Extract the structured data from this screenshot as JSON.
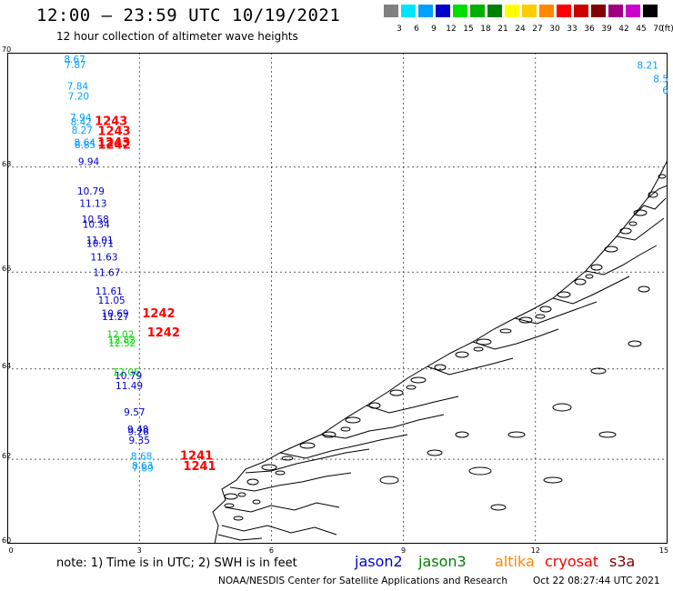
{
  "header": {
    "title": "12:00 – 23:59 UTC 10/19/2021",
    "subtitle": "12 hour collection of altimeter wave heights"
  },
  "colorbar": {
    "unit": "(ft)",
    "bins": [
      {
        "label": "3",
        "color": "#808080"
      },
      {
        "label": "6",
        "color": "#00e5ff"
      },
      {
        "label": "9",
        "color": "#00a0ff"
      },
      {
        "label": "12",
        "color": "#0000cc"
      },
      {
        "label": "15",
        "color": "#00dd00"
      },
      {
        "label": "18",
        "color": "#00b000"
      },
      {
        "label": "21",
        "color": "#008000"
      },
      {
        "label": "24",
        "color": "#ffff00"
      },
      {
        "label": "27",
        "color": "#ffcc00"
      },
      {
        "label": "30",
        "color": "#ff8800"
      },
      {
        "label": "33",
        "color": "#ff0000"
      },
      {
        "label": "36",
        "color": "#cc0000"
      },
      {
        "label": "39",
        "color": "#800000"
      },
      {
        "label": "42",
        "color": "#a00080"
      },
      {
        "label": "45",
        "color": "#cc00cc"
      },
      {
        "label": "70",
        "color": "#000000"
      }
    ]
  },
  "map": {
    "lat_labels": [
      "70",
      "68",
      "66",
      "64",
      "62",
      "60"
    ],
    "lon_labels": [
      "0",
      "3",
      "6",
      "9",
      "12",
      "15"
    ],
    "lat_values": [
      70,
      68,
      66,
      64,
      62,
      60
    ],
    "lon_values": [
      0,
      3,
      6,
      9,
      12,
      15
    ],
    "lat_range": [
      60,
      70
    ],
    "lon_range": [
      0,
      15
    ],
    "projection": "mercator",
    "grid": true,
    "wave_heights": [
      {
        "lon": 1.53,
        "lat": 69.88,
        "text": "8.67",
        "color": "#00a0ff"
      },
      {
        "lon": 1.55,
        "lat": 69.79,
        "text": "7.87",
        "color": "#00a0ff"
      },
      {
        "lon": 1.6,
        "lat": 69.42,
        "text": "7.84",
        "color": "#00a0ff"
      },
      {
        "lon": 1.62,
        "lat": 69.25,
        "text": "7.20",
        "color": "#00a0ff"
      },
      {
        "lon": 1.67,
        "lat": 68.88,
        "text": "7.94",
        "color": "#00a0ff"
      },
      {
        "lon": 1.68,
        "lat": 68.8,
        "text": "8.42",
        "color": "#00a0ff"
      },
      {
        "lon": 1.7,
        "lat": 68.65,
        "text": "8.27",
        "color": "#00a0ff"
      },
      {
        "lon": 1.76,
        "lat": 68.43,
        "text": "8.64",
        "color": "#00a0ff"
      },
      {
        "lon": 1.77,
        "lat": 68.39,
        "text": "8.85",
        "color": "#00a0ff"
      },
      {
        "lon": 1.85,
        "lat": 68.09,
        "text": "9.94",
        "color": "#0000cc"
      },
      {
        "lon": 1.9,
        "lat": 67.54,
        "text": "10.79",
        "color": "#0000cc"
      },
      {
        "lon": 1.95,
        "lat": 67.31,
        "text": "11.13",
        "color": "#0000cc"
      },
      {
        "lon": 2.0,
        "lat": 67.01,
        "text": "10.58",
        "color": "#0000cc"
      },
      {
        "lon": 2.02,
        "lat": 66.92,
        "text": "10.34",
        "color": "#0000cc"
      },
      {
        "lon": 2.1,
        "lat": 66.61,
        "text": "11.01",
        "color": "#0000cc"
      },
      {
        "lon": 2.11,
        "lat": 66.55,
        "text": "10.71",
        "color": "#0000cc"
      },
      {
        "lon": 2.2,
        "lat": 66.28,
        "text": "11.63",
        "color": "#0000cc"
      },
      {
        "lon": 2.26,
        "lat": 65.98,
        "text": "11.67",
        "color": "#0000cc"
      },
      {
        "lon": 2.31,
        "lat": 65.6,
        "text": "11.61",
        "color": "#0000cc"
      },
      {
        "lon": 2.37,
        "lat": 65.42,
        "text": "11.05",
        "color": "#0000cc"
      },
      {
        "lon": 2.45,
        "lat": 65.15,
        "text": "10.69",
        "color": "#0000cc"
      },
      {
        "lon": 2.46,
        "lat": 65.08,
        "text": "11.27",
        "color": "#0000cc"
      },
      {
        "lon": 2.57,
        "lat": 64.72,
        "text": "12.02",
        "color": "#00dd00"
      },
      {
        "lon": 2.6,
        "lat": 64.6,
        "text": "12.82",
        "color": "#00dd00"
      },
      {
        "lon": 2.61,
        "lat": 64.54,
        "text": "12.52",
        "color": "#00dd00"
      },
      {
        "lon": 2.7,
        "lat": 63.92,
        "text": "12.06",
        "color": "#00dd00"
      },
      {
        "lon": 2.75,
        "lat": 63.84,
        "text": "10.79",
        "color": "#0000cc"
      },
      {
        "lon": 2.77,
        "lat": 63.62,
        "text": "11.49",
        "color": "#0000cc"
      },
      {
        "lon": 2.89,
        "lat": 63.05,
        "text": "9.57",
        "color": "#0000cc"
      },
      {
        "lon": 2.97,
        "lat": 62.66,
        "text": "9.48",
        "color": "#0000cc"
      },
      {
        "lon": 2.98,
        "lat": 62.61,
        "text": "9.28",
        "color": "#0000cc"
      },
      {
        "lon": 3.0,
        "lat": 62.41,
        "text": "9.35",
        "color": "#0000cc"
      },
      {
        "lon": 3.05,
        "lat": 62.05,
        "text": "8.68",
        "color": "#00a0ff"
      },
      {
        "lon": 3.07,
        "lat": 61.83,
        "text": "8.63",
        "color": "#00a0ff"
      },
      {
        "lon": 3.08,
        "lat": 61.78,
        "text": "7.89",
        "color": "#00a0ff"
      },
      {
        "lon": 14.55,
        "lat": 69.78,
        "text": "8.21",
        "color": "#00a0ff"
      },
      {
        "lon": 14.85,
        "lat": 69.55,
        "text": "8.5",
        "color": "#00a0ff"
      },
      {
        "lon": 14.95,
        "lat": 69.35,
        "text": "6",
        "color": "#00a0ff"
      }
    ],
    "pass_labels": [
      {
        "lon": 2.36,
        "lat": 68.81,
        "text": "1243",
        "color": "#ff0000"
      },
      {
        "lon": 2.43,
        "lat": 68.64,
        "text": "1243",
        "color": "#ff0000"
      },
      {
        "lon": 2.42,
        "lat": 68.43,
        "text": "1243",
        "color": "#ff0000"
      },
      {
        "lon": 2.43,
        "lat": 68.39,
        "text": "1242",
        "color": "#ff0000"
      },
      {
        "lon": 3.44,
        "lat": 65.15,
        "text": "1242",
        "color": "#ff0000"
      },
      {
        "lon": 3.55,
        "lat": 64.75,
        "text": "1242",
        "color": "#ff0000"
      },
      {
        "lon": 4.3,
        "lat": 62.06,
        "text": "1241",
        "color": "#ff0000"
      },
      {
        "lon": 4.37,
        "lat": 61.82,
        "text": "1241",
        "color": "#ff0000"
      }
    ]
  },
  "footer": {
    "note": "note: 1) Time is in UTC; 2) SWH is in feet",
    "legend": [
      {
        "name": "jason2",
        "color": "#0000cc"
      },
      {
        "name": "jason3",
        "color": "#008000"
      },
      {
        "name": "altika",
        "color": "#ff8800"
      },
      {
        "name": "cryosat",
        "color": "#ff0000"
      },
      {
        "name": "s3a",
        "color": "#800000"
      }
    ],
    "credit": "NOAA/NESDIS Center for Satellite Applications and Research",
    "generated": "Oct 22 08:27:44 UTC 2021"
  }
}
